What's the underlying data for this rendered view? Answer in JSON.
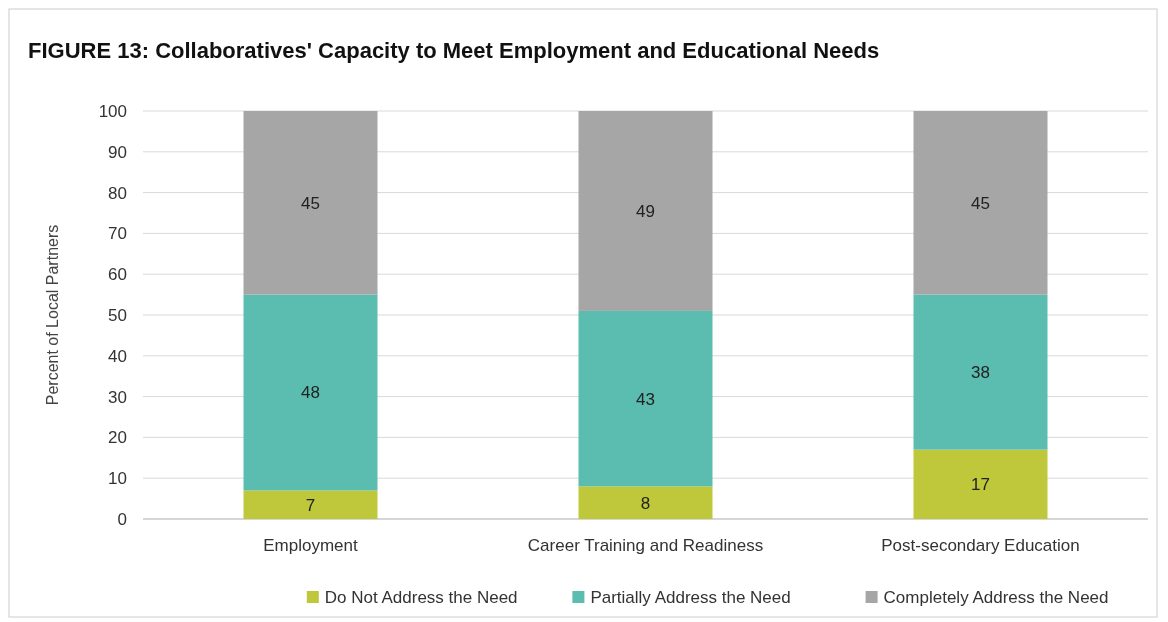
{
  "chart_data": {
    "type": "bar",
    "title": "FIGURE 13: Collaboratives' Capacity to Meet Employment and Educational Needs",
    "ylabel": "Percent of Local Partners",
    "categories": [
      "Employment",
      "Career Training and Readiness",
      "Post-secondary Education"
    ],
    "stacked": true,
    "series": [
      {
        "name": "Do Not Address the Need",
        "color": "#bfc73a",
        "values": [
          7,
          8,
          17
        ]
      },
      {
        "name": "Partially Address the Need",
        "color": "#5bbcb0",
        "values": [
          48,
          43,
          38
        ]
      },
      {
        "name": "Completely Address the Need",
        "color": "#a6a6a6",
        "values": [
          45,
          49,
          45
        ]
      }
    ],
    "ylim": [
      0,
      100
    ],
    "yticks": [
      0,
      10,
      20,
      30,
      40,
      50,
      60,
      70,
      80,
      90,
      100
    ],
    "grid": "y",
    "legend": "bottom",
    "data_labels": true
  }
}
